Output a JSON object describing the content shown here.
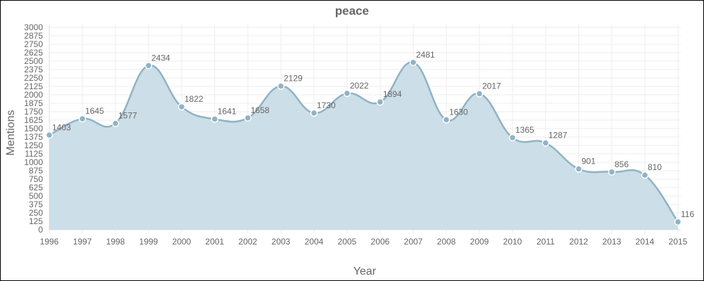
{
  "chart_data": {
    "type": "area",
    "title": "peace",
    "xlabel": "Year",
    "ylabel": "Mentions",
    "x": [
      "1996",
      "1997",
      "1998",
      "1999",
      "2000",
      "2001",
      "2002",
      "2003",
      "2004",
      "2005",
      "2006",
      "2007",
      "2008",
      "2009",
      "2010",
      "2011",
      "2012",
      "2013",
      "2014",
      "2015"
    ],
    "series": [
      {
        "values": [
          1403,
          1645,
          1577,
          2434,
          1822,
          1641,
          1658,
          2129,
          1730,
          2022,
          1894,
          2481,
          1630,
          2017,
          1365,
          1287,
          901,
          856,
          810,
          116
        ]
      }
    ],
    "ylim": [
      0,
      3000
    ],
    "ytick_step": 125,
    "grid": true,
    "legend": "none",
    "colors": {
      "line": "#8fb3c6",
      "fill": "#c9dce6",
      "point": "#8fb3c6"
    }
  }
}
